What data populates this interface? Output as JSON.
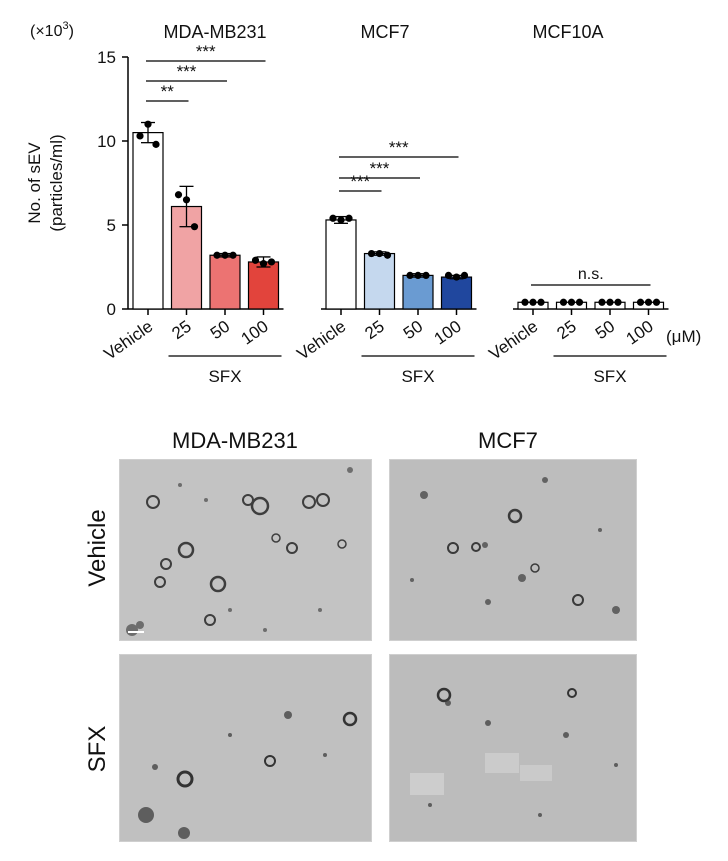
{
  "chart_data": {
    "type": "bar",
    "ylabel_line1": "No. of sEV",
    "ylabel_line2": "(particles/ml)",
    "y_multiplier": "(×10",
    "y_multiplier_exp": "3",
    "y_multiplier_close": ")",
    "yticks": [
      "0",
      "5",
      "10",
      "15"
    ],
    "ylim": [
      0,
      15
    ],
    "unit_label": "(μM)",
    "groups": [
      {
        "name": "MDA-MB231",
        "treatment_label": "SFX",
        "categories": [
          "Vehicle",
          "25",
          "50",
          "100"
        ],
        "values": [
          10.5,
          6.1,
          3.2,
          2.8
        ],
        "errors": [
          0.6,
          1.2,
          0.1,
          0.3
        ],
        "points": [
          [
            10.3,
            11.0,
            9.8
          ],
          [
            6.8,
            6.5,
            4.9
          ],
          [
            3.2,
            3.2,
            3.2
          ],
          [
            2.9,
            2.7,
            2.8
          ]
        ],
        "colors": [
          "#ffffff",
          "#f0a3a4",
          "#ec7372",
          "#e2443c"
        ],
        "significance": [
          {
            "to": 1,
            "label": "**"
          },
          {
            "to": 2,
            "label": "***"
          },
          {
            "to": 3,
            "label": "***"
          }
        ]
      },
      {
        "name": "MCF7",
        "treatment_label": "SFX",
        "categories": [
          "Vehicle",
          "25",
          "50",
          "100"
        ],
        "values": [
          5.3,
          3.3,
          2.0,
          1.9
        ],
        "errors": [
          0.2,
          0.1,
          0.1,
          0.1
        ],
        "points": [
          [
            5.4,
            5.3,
            5.4
          ],
          [
            3.3,
            3.3,
            3.2
          ],
          [
            2.0,
            2.0,
            2.0
          ],
          [
            2.0,
            1.9,
            2.0
          ]
        ],
        "colors": [
          "#ffffff",
          "#c5d8ee",
          "#6a9bd2",
          "#20479e"
        ],
        "significance": [
          {
            "to": 1,
            "label": "***"
          },
          {
            "to": 2,
            "label": "***"
          },
          {
            "to": 3,
            "label": "***"
          }
        ]
      },
      {
        "name": "MCF10A",
        "treatment_label": "SFX",
        "categories": [
          "Vehicle",
          "25",
          "50",
          "100"
        ],
        "values": [
          0.4,
          0.4,
          0.4,
          0.4
        ],
        "errors": [
          0.0,
          0.0,
          0.0,
          0.0
        ],
        "points": [
          [
            0.4,
            0.4,
            0.4
          ],
          [
            0.4,
            0.4,
            0.4
          ],
          [
            0.4,
            0.4,
            0.4
          ],
          [
            0.4,
            0.4,
            0.4
          ]
        ],
        "colors": [
          "#ffffff",
          "#ffffff",
          "#ffffff",
          "#ffffff"
        ],
        "ns_label": "n.s."
      }
    ]
  },
  "micrographs": {
    "col_titles": [
      "MDA-MB231",
      "MCF7"
    ],
    "row_labels": [
      "Vehicle",
      "SFX"
    ]
  }
}
